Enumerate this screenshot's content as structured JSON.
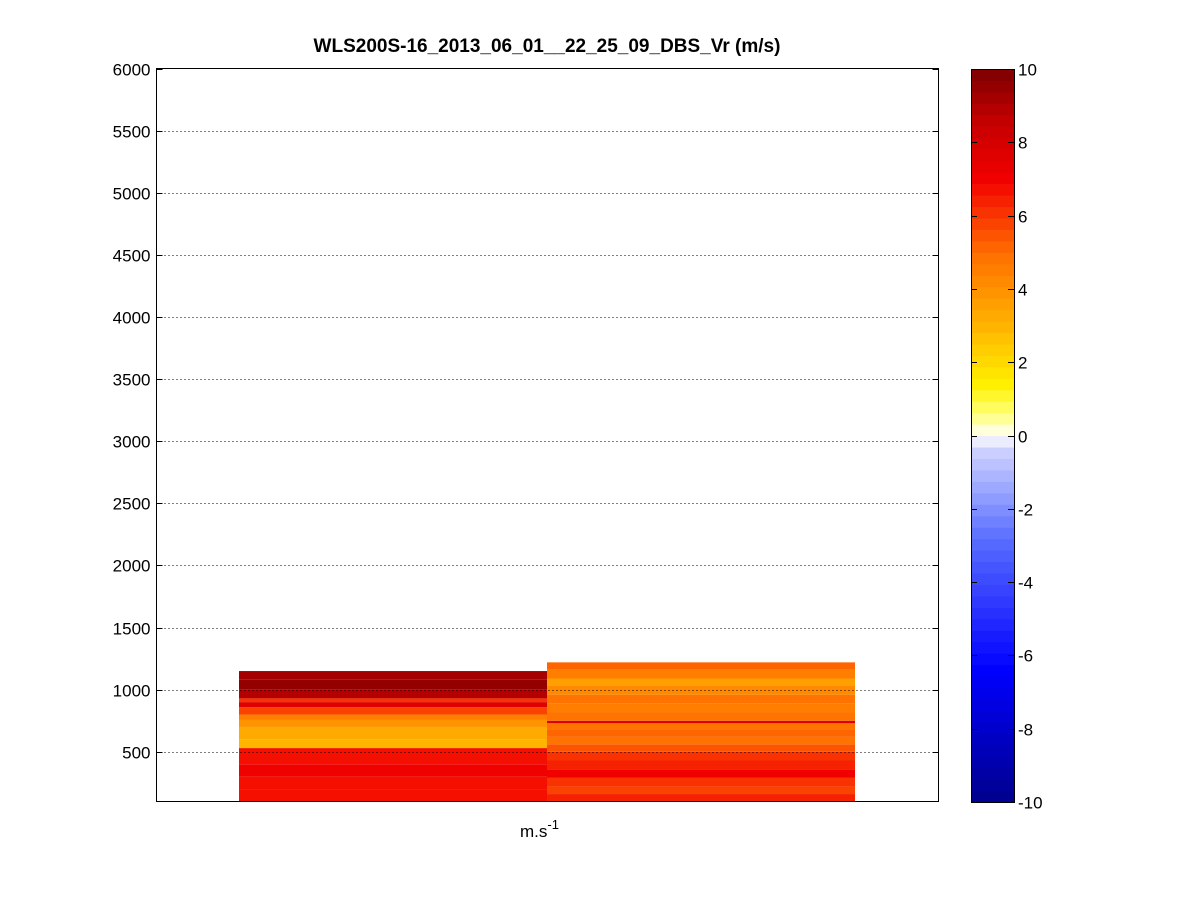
{
  "chart_data": {
    "type": "heatmap",
    "title": "WLS200S-16_2013_06_01__22_25_09_DBS_Vr (m/s)",
    "xlabel_base": "m.s",
    "xlabel_sup": "-1",
    "ylabel": "",
    "ylim": [
      100,
      6000
    ],
    "yticks": [
      500,
      1000,
      1500,
      2000,
      2500,
      3000,
      3500,
      4000,
      4500,
      5000,
      5500,
      6000
    ],
    "grid": true,
    "colorbar": {
      "clim": [
        -10,
        10
      ],
      "ticks": [
        -10,
        -8,
        -6,
        -4,
        -2,
        0,
        2,
        4,
        6,
        8,
        10
      ],
      "levels": 64
    },
    "columns": [
      {
        "cells": [
          {
            "y0": 100,
            "y1": 200,
            "value": 6.8
          },
          {
            "y0": 200,
            "y1": 300,
            "value": 6.6
          },
          {
            "y0": 300,
            "y1": 400,
            "value": 7.0
          },
          {
            "y0": 400,
            "y1": 530,
            "value": 6.7
          },
          {
            "y0": 530,
            "y1": 600,
            "value": 3.0
          },
          {
            "y0": 600,
            "y1": 700,
            "value": 3.3
          },
          {
            "y0": 700,
            "y1": 760,
            "value": 3.8
          },
          {
            "y0": 760,
            "y1": 800,
            "value": 4.5
          },
          {
            "y0": 800,
            "y1": 860,
            "value": 5.8
          },
          {
            "y0": 860,
            "y1": 900,
            "value": 7.5
          },
          {
            "y0": 900,
            "y1": 930,
            "value": 6.0
          },
          {
            "y0": 930,
            "y1": 1000,
            "value": 9.0
          },
          {
            "y0": 1000,
            "y1": 1080,
            "value": 9.6
          },
          {
            "y0": 1080,
            "y1": 1150,
            "value": 9.2
          }
        ]
      },
      {
        "cells": [
          {
            "y0": 100,
            "y1": 160,
            "value": 6.3
          },
          {
            "y0": 160,
            "y1": 220,
            "value": 5.8
          },
          {
            "y0": 220,
            "y1": 290,
            "value": 6.1
          },
          {
            "y0": 290,
            "y1": 360,
            "value": 6.9
          },
          {
            "y0": 360,
            "y1": 430,
            "value": 6.5
          },
          {
            "y0": 430,
            "y1": 500,
            "value": 6.0
          },
          {
            "y0": 500,
            "y1": 560,
            "value": 5.5
          },
          {
            "y0": 560,
            "y1": 620,
            "value": 4.9
          },
          {
            "y0": 620,
            "y1": 680,
            "value": 5.3
          },
          {
            "y0": 680,
            "y1": 730,
            "value": 4.7
          },
          {
            "y0": 730,
            "y1": 750,
            "value": 7.6
          },
          {
            "y0": 750,
            "y1": 820,
            "value": 4.8
          },
          {
            "y0": 820,
            "y1": 890,
            "value": 4.4
          },
          {
            "y0": 890,
            "y1": 960,
            "value": 4.9
          },
          {
            "y0": 960,
            "y1": 1030,
            "value": 4.3
          },
          {
            "y0": 1030,
            "y1": 1090,
            "value": 3.7
          },
          {
            "y0": 1090,
            "y1": 1160,
            "value": 4.6
          },
          {
            "y0": 1160,
            "y1": 1220,
            "value": 5.0
          }
        ]
      }
    ]
  }
}
